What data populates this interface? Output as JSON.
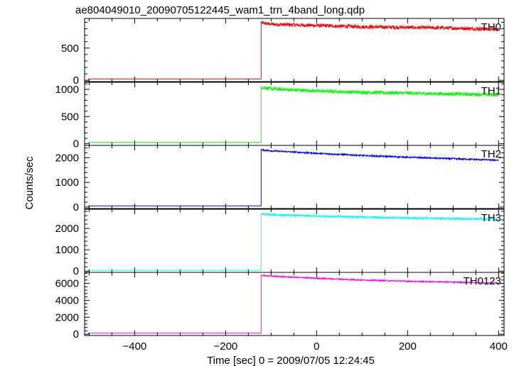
{
  "chart_data": {
    "type": "line",
    "title": "ae804049010_20090705122445_wam1_trn_4band_long.qdp",
    "xlabel": "Time [sec] 0 = 2009/07/05 12:24:45",
    "ylabel": "Counts/sec",
    "xlim": [
      -510,
      412
    ],
    "x_ticks": [
      -400,
      -200,
      0,
      200,
      400
    ],
    "x_tick_labels": [
      "−400",
      "−200",
      "0",
      "200",
      "400"
    ],
    "trigger_time": -122,
    "panels": [
      {
        "name": "TH0",
        "color": "#ff0000",
        "ylim": [
          -20,
          960
        ],
        "y_ticks": [
          0,
          500
        ],
        "y_tick_labels": [
          "0",
          "500"
        ],
        "pre_level": 20,
        "post_series": {
          "x": [
            -122,
            -100,
            0,
            100,
            200,
            300,
            400
          ],
          "y": [
            890,
            870,
            850,
            830,
            820,
            810,
            790
          ]
        },
        "noise": 28
      },
      {
        "name": "TH1",
        "color": "#00ff00",
        "ylim": [
          -30,
          1130
        ],
        "y_ticks": [
          0,
          500,
          1000
        ],
        "y_tick_labels": [
          "0",
          "500",
          "1000"
        ],
        "pre_level": 25,
        "post_series": {
          "x": [
            -122,
            -100,
            0,
            100,
            200,
            300,
            400
          ],
          "y": [
            1040,
            1010,
            970,
            945,
            930,
            915,
            900
          ]
        },
        "noise": 32
      },
      {
        "name": "TH2",
        "color": "#0000ff",
        "ylim": [
          -60,
          2500
        ],
        "y_ticks": [
          0,
          1000,
          2000
        ],
        "y_tick_labels": [
          "0",
          "1000",
          "2000"
        ],
        "pre_level": 50,
        "post_series": {
          "x": [
            -122,
            -100,
            0,
            100,
            200,
            300,
            400
          ],
          "y": [
            2320,
            2280,
            2180,
            2090,
            2020,
            1960,
            1900
          ]
        },
        "noise": 30
      },
      {
        "name": "TH3",
        "color": "#00ffff",
        "ylim": [
          -60,
          2900
        ],
        "y_ticks": [
          0,
          1000,
          2000
        ],
        "y_tick_labels": [
          "0",
          "1000",
          "2000"
        ],
        "pre_level": 40,
        "post_series": {
          "x": [
            -122,
            -100,
            0,
            100,
            200,
            300,
            400
          ],
          "y": [
            2680,
            2640,
            2580,
            2530,
            2490,
            2460,
            2430
          ]
        },
        "noise": 45
      },
      {
        "name": "TH0123",
        "color": "#ff00ff",
        "ylim": [
          -150,
          7300
        ],
        "y_ticks": [
          0,
          2000,
          4000,
          6000
        ],
        "y_tick_labels": [
          "0",
          "2000",
          "4000",
          "6000"
        ],
        "pre_level": 130,
        "post_series": {
          "x": [
            -122,
            -100,
            0,
            100,
            200,
            300,
            400
          ],
          "y": [
            6950,
            6850,
            6600,
            6400,
            6250,
            6150,
            6050
          ]
        },
        "noise": 70
      }
    ],
    "grid": false,
    "legend": "panel labels top-right"
  }
}
